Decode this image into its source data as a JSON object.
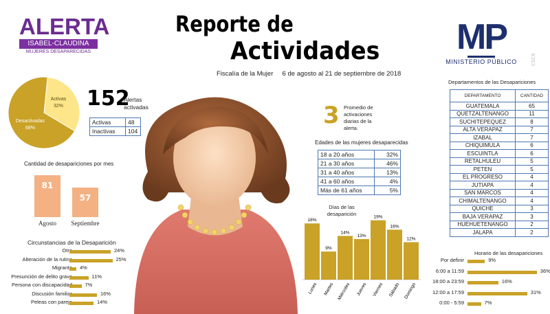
{
  "logo_left": {
    "alerta": "ALERTA",
    "isabel": "ISABEL-CLAUDINA",
    "mujeres": "MUJERES DESAPARECIDAS"
  },
  "title": {
    "line1": "Reporte de",
    "line2": "Actividades",
    "subtitle": "Fiscalía de la Mujer     6 de agosto al 21 de septiembre de 2018"
  },
  "logo_right": {
    "letters": "MP",
    "name": "MINISTERIO PÚBLICO",
    "code": "CSC6"
  },
  "pie": {
    "slices": [
      {
        "label": "Activas",
        "percent": "32%",
        "value": 32,
        "color": "#fde68a"
      },
      {
        "label": "Desactivadas",
        "percent": "68%",
        "value": 68,
        "color": "#c9a227"
      }
    ]
  },
  "alerts": {
    "total": "152",
    "label_line1": "Alertas",
    "label_line2": "activadas",
    "rows": [
      {
        "label": "Activas",
        "value": "48"
      },
      {
        "label": "Inactivas",
        "value": "104"
      }
    ]
  },
  "monthly": {
    "title": "Cantidad de desapariciones por mes",
    "bars": [
      {
        "label": "Agosto",
        "value": 81,
        "text": "81"
      },
      {
        "label": "Septiembre",
        "value": 57,
        "text": "57"
      }
    ]
  },
  "circumstances": {
    "title": "Circunstancias de la Desaparición",
    "rows": [
      {
        "label": "Otro",
        "value": 24,
        "text": "24%"
      },
      {
        "label": "Alteración de la rutina",
        "value": 25,
        "text": "25%"
      },
      {
        "label": "Migrante",
        "value": 4,
        "text": "4%"
      },
      {
        "label": "Presunción de delito grave",
        "value": 11,
        "text": "11%"
      },
      {
        "label": "Persona con discapacidad",
        "value": 7,
        "text": "7%"
      },
      {
        "label": "Discusión familiar",
        "value": 16,
        "text": "16%"
      },
      {
        "label": "Peleas con pareja",
        "value": 14,
        "text": "14%"
      }
    ]
  },
  "average": {
    "number": "3",
    "label": "Promedio de activaciones diarias de la alerta."
  },
  "ages": {
    "title": "Edades de las mujeres desaparecidas",
    "rows": [
      {
        "range": "18 a 20 años",
        "pct": "32%"
      },
      {
        "range": "21 a 30 años",
        "pct": "46%"
      },
      {
        "range": "31 a 40 años",
        "pct": "13%"
      },
      {
        "range": "41 a 60 años",
        "pct": "4%"
      },
      {
        "range": "Más de 61 años",
        "pct": "5%"
      }
    ]
  },
  "days": {
    "title_line1": "Días de las",
    "title_line2": "desaparición",
    "bars": [
      {
        "label": "Lunes",
        "value": 18,
        "text": "18%"
      },
      {
        "label": "Martes",
        "value": 9,
        "text": "9%"
      },
      {
        "label": "Miércoles",
        "value": 14,
        "text": "14%"
      },
      {
        "label": "Jueves",
        "value": 13,
        "text": "13%"
      },
      {
        "label": "Viernes",
        "value": 19,
        "text": "19%"
      },
      {
        "label": "Sábado",
        "value": 16,
        "text": "16%"
      },
      {
        "label": "Domingo",
        "value": 12,
        "text": "12%"
      }
    ]
  },
  "departments": {
    "title": "Departamentos de las Desapariciones",
    "header": {
      "dept": "DEPARTAMENTO",
      "qty": "CANTIDAD"
    },
    "rows": [
      {
        "name": "GUATEMALA",
        "qty": "65"
      },
      {
        "name": "QUETZALTENANGO",
        "qty": "11"
      },
      {
        "name": "SUCHITEPEQUEZ",
        "qty": "8"
      },
      {
        "name": "ALTA VERAPAZ",
        "qty": "7"
      },
      {
        "name": "IZABAL",
        "qty": "7"
      },
      {
        "name": "CHIQUIMULA",
        "qty": "6"
      },
      {
        "name": "ESCUINTLA",
        "qty": "6"
      },
      {
        "name": "RETALHULEU",
        "qty": "5"
      },
      {
        "name": "PETEN",
        "qty": "5"
      },
      {
        "name": "EL PROGRESO",
        "qty": "4"
      },
      {
        "name": "JUTIAPA",
        "qty": "4"
      },
      {
        "name": "SAN MARCOS",
        "qty": "4"
      },
      {
        "name": "CHIMALTENANGO",
        "qty": "4"
      },
      {
        "name": "QUICHE",
        "qty": "3"
      },
      {
        "name": "BAJA VERAPAZ",
        "qty": "3"
      },
      {
        "name": "HUEHUETENANGO",
        "qty": "2"
      },
      {
        "name": "JALAPA",
        "qty": "2"
      }
    ]
  },
  "schedule": {
    "title": "Horario de las desapariciones",
    "rows": [
      {
        "label": "Por definir",
        "value": 9,
        "text": "9%"
      },
      {
        "label": "6:00 a 11:59",
        "value": 36,
        "text": "36%"
      },
      {
        "label": "18:00 a 23:59",
        "value": 16,
        "text": "16%"
      },
      {
        "label": "12:00 a 17:59",
        "value": 31,
        "text": "31%"
      },
      {
        "label": "0:00 - 5:59",
        "value": 7,
        "text": "7%"
      }
    ]
  },
  "chart_data": [
    {
      "type": "pie",
      "categories": [
        "Activas",
        "Desactivadas"
      ],
      "values": [
        32,
        68
      ]
    },
    {
      "type": "bar",
      "title": "Cantidad de desapariciones por mes",
      "categories": [
        "Agosto",
        "Septiembre"
      ],
      "values": [
        81,
        57
      ]
    },
    {
      "type": "bar",
      "title": "Circunstancias de la Desaparición",
      "categories": [
        "Otro",
        "Alteración de la rutina",
        "Migrante",
        "Presunción de delito grave",
        "Persona con discapacidad",
        "Discusión familiar",
        "Peleas con pareja"
      ],
      "values": [
        24,
        25,
        4,
        11,
        7,
        16,
        14
      ]
    },
    {
      "type": "bar",
      "title": "Días de las desaparición",
      "categories": [
        "Lunes",
        "Martes",
        "Miércoles",
        "Jueves",
        "Viernes",
        "Sábado",
        "Domingo"
      ],
      "values": [
        18,
        9,
        14,
        13,
        19,
        16,
        12
      ]
    },
    {
      "type": "bar",
      "title": "Horario de las desapariciones",
      "categories": [
        "Por definir",
        "6:00 a 11:59",
        "18:00 a 23:59",
        "12:00 a 17:59",
        "0:00 - 5:59"
      ],
      "values": [
        9,
        36,
        16,
        31,
        7
      ]
    },
    {
      "type": "table",
      "title": "Edades de las mujeres desaparecidas",
      "categories": [
        "18 a 20 años",
        "21 a 30 años",
        "31 a 40 años",
        "41 a 60 años",
        "Más de 61 años"
      ],
      "values": [
        32,
        46,
        13,
        4,
        5
      ]
    }
  ]
}
